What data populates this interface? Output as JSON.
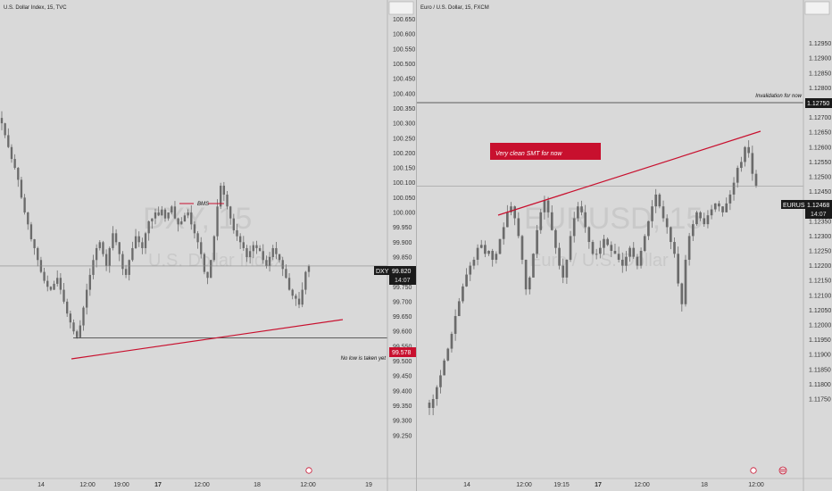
{
  "panes": [
    {
      "id": "dxy",
      "header": {
        "title": "U.S. Dollar Index, 15, TVC"
      },
      "watermark": {
        "symbol": "DXY, 15",
        "name": "U.S. Dollar Index"
      },
      "y_ticks": [
        "100.650",
        "100.600",
        "100.550",
        "100.500",
        "100.450",
        "100.400",
        "100.350",
        "100.300",
        "100.250",
        "100.200",
        "100.150",
        "100.100",
        "100.050",
        "100.000",
        "99.950",
        "99.900",
        "99.850",
        "99.800",
        "99.750",
        "99.700",
        "99.650",
        "99.600",
        "99.550",
        "99.500",
        "99.450",
        "99.400",
        "99.350",
        "99.300",
        "99.250"
      ],
      "time_labels": [
        {
          "text": "14",
          "bold": false
        },
        {
          "text": "12:00",
          "bold": false
        },
        {
          "text": "19:00",
          "bold": false
        },
        {
          "text": "17",
          "bold": true
        },
        {
          "text": "12:00",
          "bold": false
        },
        {
          "text": "18",
          "bold": false
        },
        {
          "text": "12:00",
          "bold": false
        },
        {
          "text": "19",
          "bold": false
        }
      ],
      "price_tag": {
        "symbol": "DXY",
        "price": "99.820",
        "countdown": "14:07"
      },
      "level_tag": {
        "price": "99.578"
      },
      "annotations": {
        "bms": "BMS",
        "no_low": "No low is taken yet"
      }
    },
    {
      "id": "eurusd",
      "header": {
        "title": "Euro / U.S. Dollar, 15, FXCM"
      },
      "watermark": {
        "symbol": "EURUSD, 15",
        "name": "Euro / U.S. Dollar"
      },
      "y_ticks": [
        "1.12950",
        "1.12900",
        "1.12850",
        "1.12800",
        "1.12750",
        "1.12700",
        "1.12650",
        "1.12600",
        "1.12550",
        "1.12500",
        "1.12450",
        "1.12400",
        "1.12350",
        "1.12300",
        "1.12250",
        "1.12200",
        "1.12150",
        "1.12100",
        "1.12050",
        "1.12000",
        "1.11950",
        "1.11900",
        "1.11850",
        "1.11800",
        "1.11750"
      ],
      "time_labels": [
        {
          "text": "14",
          "bold": false
        },
        {
          "text": "12:00",
          "bold": false
        },
        {
          "text": "19:15",
          "bold": false
        },
        {
          "text": "17",
          "bold": true
        },
        {
          "text": "12:00",
          "bold": false
        },
        {
          "text": "18",
          "bold": false
        },
        {
          "text": "12:00",
          "bold": false
        }
      ],
      "price_tag": {
        "symbol": "EURUSD",
        "price": "1.12468",
        "countdown": "14:07"
      },
      "level_tag": {
        "price": "1.12750"
      },
      "annotations": {
        "invalidation": "Invalidation for now",
        "smt": "Very clean SMT for now"
      }
    }
  ],
  "chart_data": [
    {
      "type": "candlestick",
      "title": "U.S. Dollar Index, 15, TVC",
      "ylim": [
        99.2,
        100.68
      ],
      "x_labels": [
        "14",
        "12:00",
        "19:00",
        "17",
        "12:00",
        "18",
        "12:00",
        "19"
      ],
      "series_close": [
        100.3,
        100.26,
        100.22,
        100.18,
        100.15,
        100.11,
        100.05,
        100.0,
        99.96,
        99.91,
        99.88,
        99.84,
        99.8,
        99.77,
        99.75,
        99.74,
        99.76,
        99.78,
        99.74,
        99.7,
        99.66,
        99.63,
        99.6,
        99.58,
        99.62,
        99.68,
        99.74,
        99.79,
        99.84,
        99.88,
        99.9,
        99.86,
        99.82,
        99.88,
        99.93,
        99.9,
        99.86,
        99.81,
        99.79,
        99.84,
        99.88,
        99.92,
        99.9,
        99.88,
        99.93,
        99.97,
        99.98,
        100.0,
        99.99,
        100.01,
        99.98,
        100.0,
        100.02,
        99.98,
        99.96,
        99.97,
        99.99,
        100.0,
        99.96,
        99.93,
        99.9,
        99.86,
        99.8,
        99.78,
        99.84,
        99.92,
        100.02,
        100.09,
        100.06,
        100.02,
        99.98,
        99.94,
        99.92,
        99.9,
        99.88,
        99.85,
        99.87,
        99.89,
        99.88,
        99.87,
        99.84,
        99.82,
        99.85,
        99.88,
        99.86,
        99.84,
        99.81,
        99.78,
        99.74,
        99.72,
        99.71,
        99.69,
        99.74,
        99.8,
        99.82
      ],
      "annotations": {
        "bms_level": 100.03,
        "tag_level": 99.578,
        "current_price": 99.82
      }
    },
    {
      "type": "candlestick",
      "title": "Euro / U.S. Dollar, 15, FXCM",
      "ylim": [
        1.1172,
        1.1301
      ],
      "x_labels": [
        "14",
        "12:00",
        "19:15",
        "17",
        "12:00",
        "18",
        "12:00"
      ],
      "series_close": [
        1.1172,
        1.1175,
        1.1179,
        1.1183,
        1.1188,
        1.1192,
        1.1197,
        1.1203,
        1.1208,
        1.1213,
        1.1217,
        1.122,
        1.1222,
        1.1226,
        1.1227,
        1.1224,
        1.1225,
        1.1222,
        1.1224,
        1.1229,
        1.1233,
        1.1238,
        1.124,
        1.1236,
        1.123,
        1.1222,
        1.1212,
        1.1216,
        1.1224,
        1.1232,
        1.1238,
        1.1242,
        1.1238,
        1.1232,
        1.1226,
        1.122,
        1.1216,
        1.1222,
        1.123,
        1.1236,
        1.124,
        1.1238,
        1.1233,
        1.1228,
        1.1224,
        1.1224,
        1.1226,
        1.1229,
        1.1227,
        1.1225,
        1.1224,
        1.1222,
        1.122,
        1.1223,
        1.1226,
        1.1223,
        1.122,
        1.1225,
        1.123,
        1.1235,
        1.124,
        1.1244,
        1.124,
        1.1236,
        1.1233,
        1.1228,
        1.1224,
        1.1214,
        1.1207,
        1.1222,
        1.123,
        1.1234,
        1.1238,
        1.1236,
        1.1234,
        1.1237,
        1.1239,
        1.1241,
        1.124,
        1.1238,
        1.1241,
        1.1244,
        1.1248,
        1.1253,
        1.1255,
        1.126,
        1.1258,
        1.1251,
        1.1247
      ],
      "annotations": {
        "invalidation_level": 1.1275,
        "current_price": 1.12468
      }
    }
  ],
  "colors": {
    "background": "#d9d9d9",
    "candle": "#6b6b6b",
    "trendline": "#c8102e",
    "tag_dark": "#1a1a1a",
    "tag_red": "#c8102e",
    "level_line": "#333333"
  }
}
